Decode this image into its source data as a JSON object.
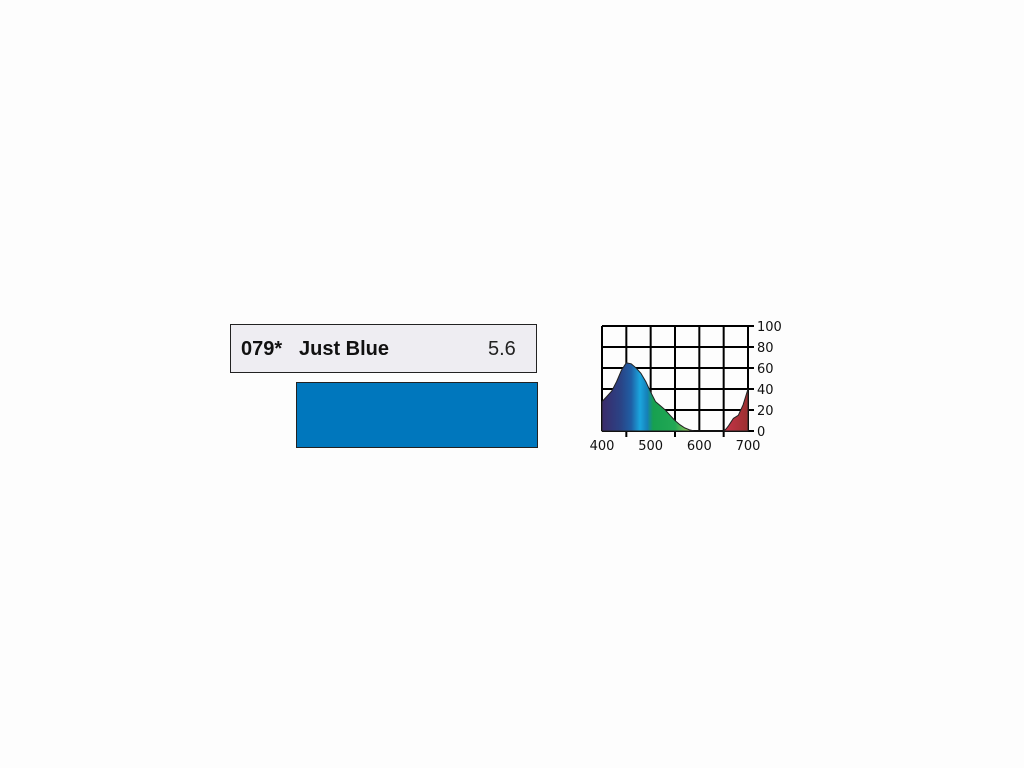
{
  "filter": {
    "code": "079*",
    "name": "Just Blue",
    "value": "5.6",
    "swatch_color": "#0077bd"
  },
  "chart_data": {
    "type": "area",
    "x": [
      400,
      410,
      420,
      430,
      440,
      450,
      460,
      470,
      480,
      490,
      500,
      510,
      520,
      530,
      540,
      550,
      560,
      570,
      580,
      590,
      600,
      650,
      655,
      660,
      670,
      680,
      690,
      700
    ],
    "y": [
      28,
      33,
      38,
      47,
      58,
      65,
      64,
      60,
      55,
      47,
      37,
      28,
      24,
      20,
      15,
      10,
      6,
      3,
      1,
      0,
      0,
      0,
      2,
      5,
      12,
      15,
      25,
      40
    ],
    "xlim": [
      400,
      700
    ],
    "ylim": [
      0,
      100
    ],
    "xticks": [
      "400",
      "500",
      "600",
      "700"
    ],
    "yticks": [
      "100",
      "80",
      "60",
      "40",
      "20",
      "0"
    ],
    "grid": true,
    "fill": "spectrum gradient"
  }
}
